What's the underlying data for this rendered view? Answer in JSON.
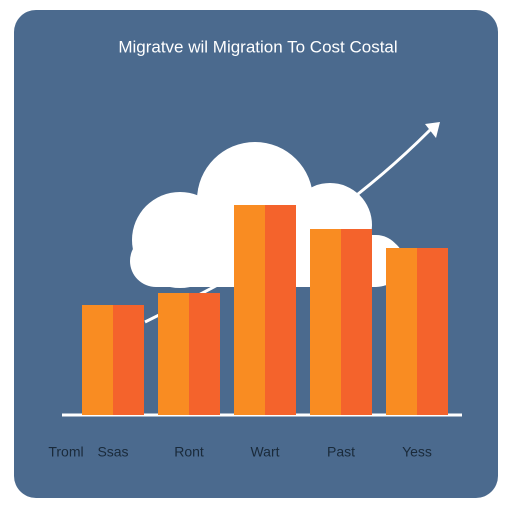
{
  "chart_data": {
    "type": "bar",
    "title": "Migratve wil Migration To Cost Costal",
    "x_label": "Troml",
    "categories": [
      "Ssas",
      "Ront",
      "Wart",
      "Past",
      "Yess"
    ],
    "values": [
      110,
      122,
      210,
      186,
      167
    ],
    "color": "#f98c22",
    "shade_color": "#f4632c",
    "ylim": [
      0,
      250
    ]
  }
}
